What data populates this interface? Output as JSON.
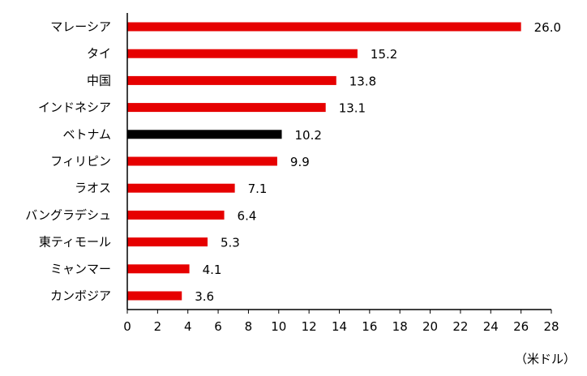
{
  "chart_data": {
    "type": "bar",
    "orientation": "horizontal",
    "categories": [
      "マレーシア",
      "タイ",
      "中国",
      "インドネシア",
      "ベトナム",
      "フィリピン",
      "ラオス",
      "バングラデシュ",
      "東ティモール",
      "ミャンマー",
      "カンボジア"
    ],
    "values": [
      26.0,
      15.2,
      13.8,
      13.1,
      10.2,
      9.9,
      7.1,
      6.4,
      5.3,
      4.1,
      3.6
    ],
    "value_labels": [
      "26.0",
      "15.2",
      "13.8",
      "13.1",
      "10.2",
      "9.9",
      "7.1",
      "6.4",
      "5.3",
      "4.1",
      "3.6"
    ],
    "bar_colors": [
      "#e60000",
      "#e60000",
      "#e60000",
      "#e60000",
      "#000000",
      "#e60000",
      "#e60000",
      "#e60000",
      "#e60000",
      "#e60000",
      "#e60000"
    ],
    "highlight_category": "ベトナム",
    "xlim": [
      0,
      28
    ],
    "xticks": [
      0,
      2,
      4,
      6,
      8,
      10,
      12,
      14,
      16,
      18,
      20,
      22,
      24,
      26,
      28
    ],
    "unit_label": "（米ドル）",
    "grid": false,
    "legend": "none"
  }
}
